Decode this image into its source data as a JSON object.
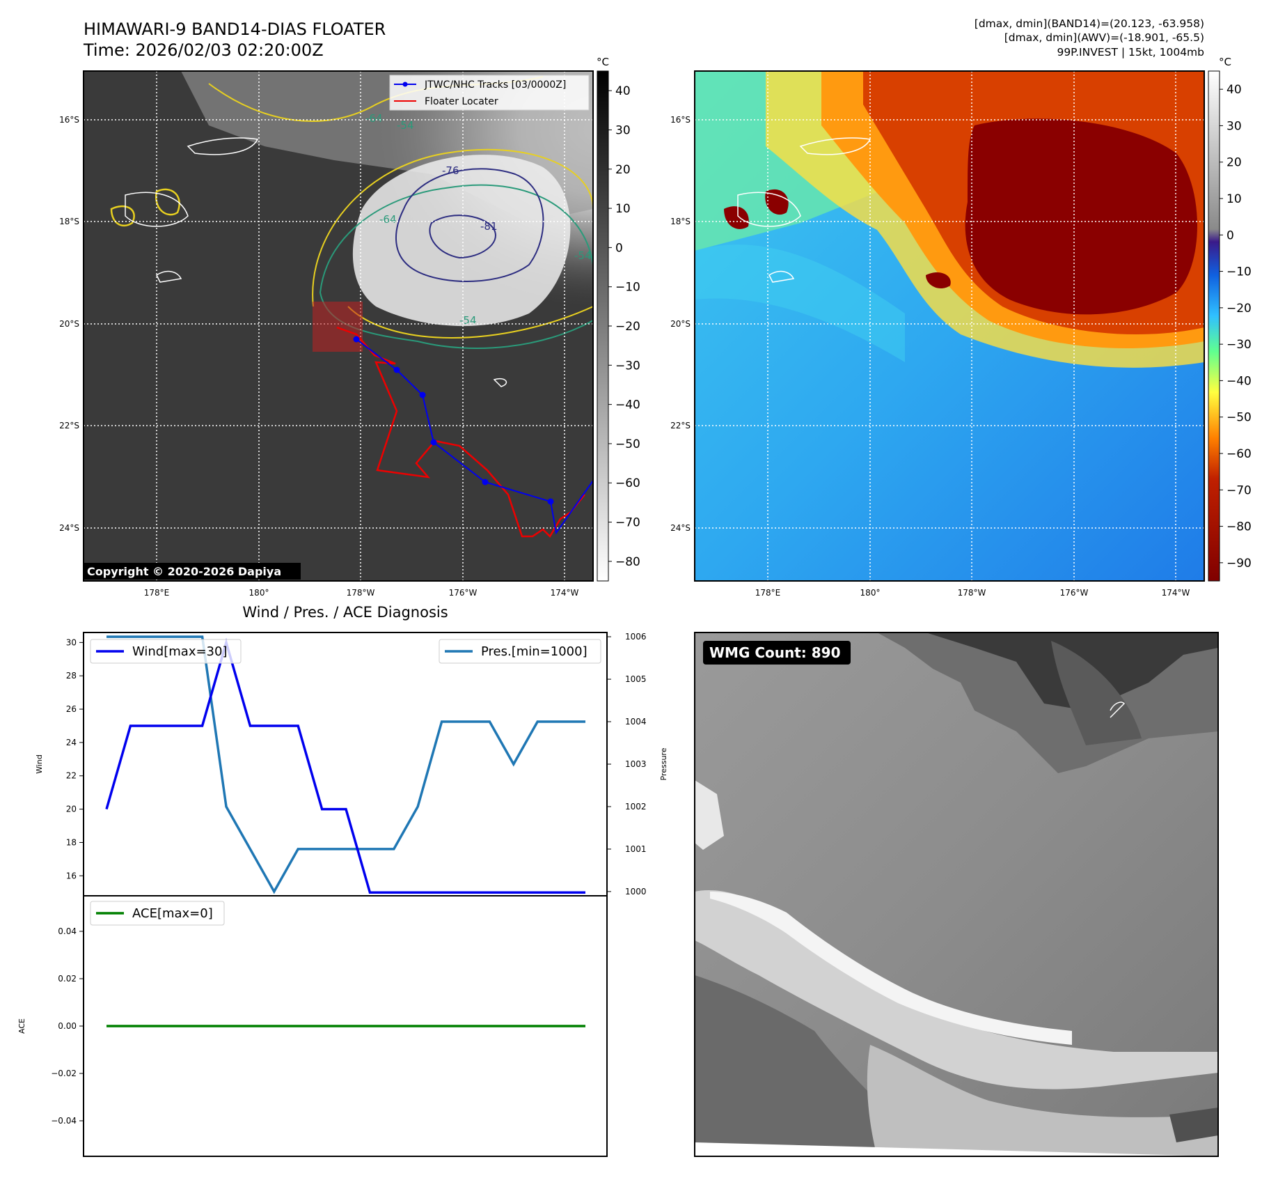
{
  "header": {
    "title": "HIMAWARI-9 BAND14-DIAS FLOATER",
    "time": "Time: 2026/02/03 02:20:00Z",
    "info_line1": "[dmax, dmin](BAND14)=(20.123, -63.958)",
    "info_line2": "[dmax, dmin](AWV)=(-18.901, -65.5)",
    "info_line3": "99P.INVEST | 15kt, 1004mb"
  },
  "map": {
    "lon_ticks": [
      "178°E",
      "180°",
      "178°W",
      "176°W",
      "174°W"
    ],
    "lat_ticks": [
      "16°S",
      "18°S",
      "20°S",
      "22°S",
      "24°S"
    ],
    "copyright": "Copyright © 2020-2026 Dapiya",
    "legend": {
      "tracks": "JTWC/NHC Tracks [03/0000Z]",
      "locater": "Floater Locater"
    },
    "contour_labels": [
      "-76",
      "-81",
      "-64",
      "-54",
      "-64",
      "-54",
      "-54"
    ],
    "colorbar_left": {
      "unit": "°C",
      "ticks": [
        "40",
        "30",
        "20",
        "10",
        "0",
        "−10",
        "−20",
        "−30",
        "−40",
        "−50",
        "−60",
        "−70",
        "−80"
      ]
    },
    "colorbar_right": {
      "unit": "°C",
      "ticks": [
        "40",
        "30",
        "20",
        "10",
        "0",
        "−10",
        "−20",
        "−30",
        "−40",
        "−50",
        "−60",
        "−70",
        "−80",
        "−90"
      ]
    }
  },
  "chart_data": [
    {
      "type": "line",
      "title": "Wind / Pres. / ACE Diagnosis",
      "x": [
        0,
        1,
        2,
        3,
        4,
        5,
        6,
        7,
        8,
        9,
        10,
        11,
        12,
        13,
        14,
        15,
        16,
        17,
        18,
        19,
        20
      ],
      "series": [
        {
          "name": "Wind[max=30]",
          "axis": "left",
          "color": "#0000ee",
          "values": [
            20,
            25,
            25,
            25,
            25,
            30,
            25,
            25,
            25,
            20,
            20,
            15,
            15,
            15,
            15,
            15,
            15,
            15,
            15,
            15,
            15
          ]
        },
        {
          "name": "Pres.[min=1000]",
          "axis": "right",
          "color": "#1f77b4",
          "values": [
            1006,
            1006,
            1006,
            1006,
            1006,
            1002,
            1001,
            1000,
            1001,
            1001,
            1001,
            1001,
            1001,
            1002,
            1004,
            1004,
            1004,
            1003,
            1004,
            1004,
            1004
          ]
        }
      ],
      "ylabel": "Wind",
      "y2label": "Pressure",
      "ylim": [
        14.8,
        30.6
      ],
      "y2lim": [
        999.9,
        1006.1
      ],
      "yticks": [
        16,
        18,
        20,
        22,
        24,
        26,
        28,
        30
      ],
      "y2ticks": [
        1000,
        1001,
        1002,
        1003,
        1004,
        1005,
        1006
      ]
    },
    {
      "type": "line",
      "series": [
        {
          "name": "ACE[max=0]",
          "color": "#008000",
          "values": [
            0,
            0,
            0,
            0,
            0,
            0,
            0,
            0,
            0,
            0,
            0,
            0,
            0,
            0,
            0,
            0,
            0,
            0,
            0,
            0,
            0
          ]
        }
      ],
      "ylabel": "ACE",
      "ylim": [
        -0.055,
        0.055
      ],
      "yticks": [
        0.04,
        0.02,
        0.0,
        -0.02,
        -0.04
      ],
      "ytick_labels": [
        "0.04",
        "0.02",
        "0.00",
        "−0.02",
        "−0.04"
      ]
    }
  ],
  "wmg": {
    "label": "WMG Count: 890"
  }
}
